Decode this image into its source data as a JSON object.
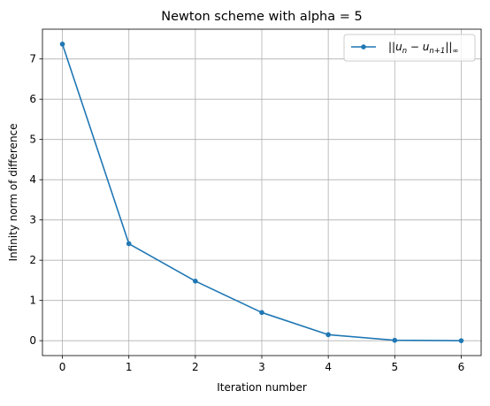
{
  "chart_data": {
    "type": "line",
    "title": "Newton scheme with alpha = 5",
    "xlabel": "Iteration number",
    "ylabel": "Infinity norm of difference",
    "x": [
      0,
      1,
      2,
      3,
      4,
      5,
      6
    ],
    "series": [
      {
        "name": "||u_n - u_{n+1}||_∞",
        "values": [
          7.37,
          2.41,
          1.48,
          0.7,
          0.15,
          0.01,
          0.0
        ],
        "color": "#1f77b4",
        "marker": "circle"
      }
    ],
    "xticks": [
      "0",
      "1",
      "2",
      "3",
      "4",
      "5",
      "6"
    ],
    "yticks": [
      "0",
      "1",
      "2",
      "3",
      "4",
      "5",
      "6",
      "7"
    ],
    "xlim": [
      -0.3,
      6.3
    ],
    "ylim": [
      -0.37,
      7.74
    ],
    "grid": true,
    "legend": "top-right",
    "grid_color": "#b0b0b0",
    "legend_label": {
      "pre": "||",
      "u1": "u",
      "sub1": "n",
      "mid": " − ",
      "u2": "u",
      "sub2": "n+1",
      "post": "||",
      "sub3": "∞"
    }
  }
}
